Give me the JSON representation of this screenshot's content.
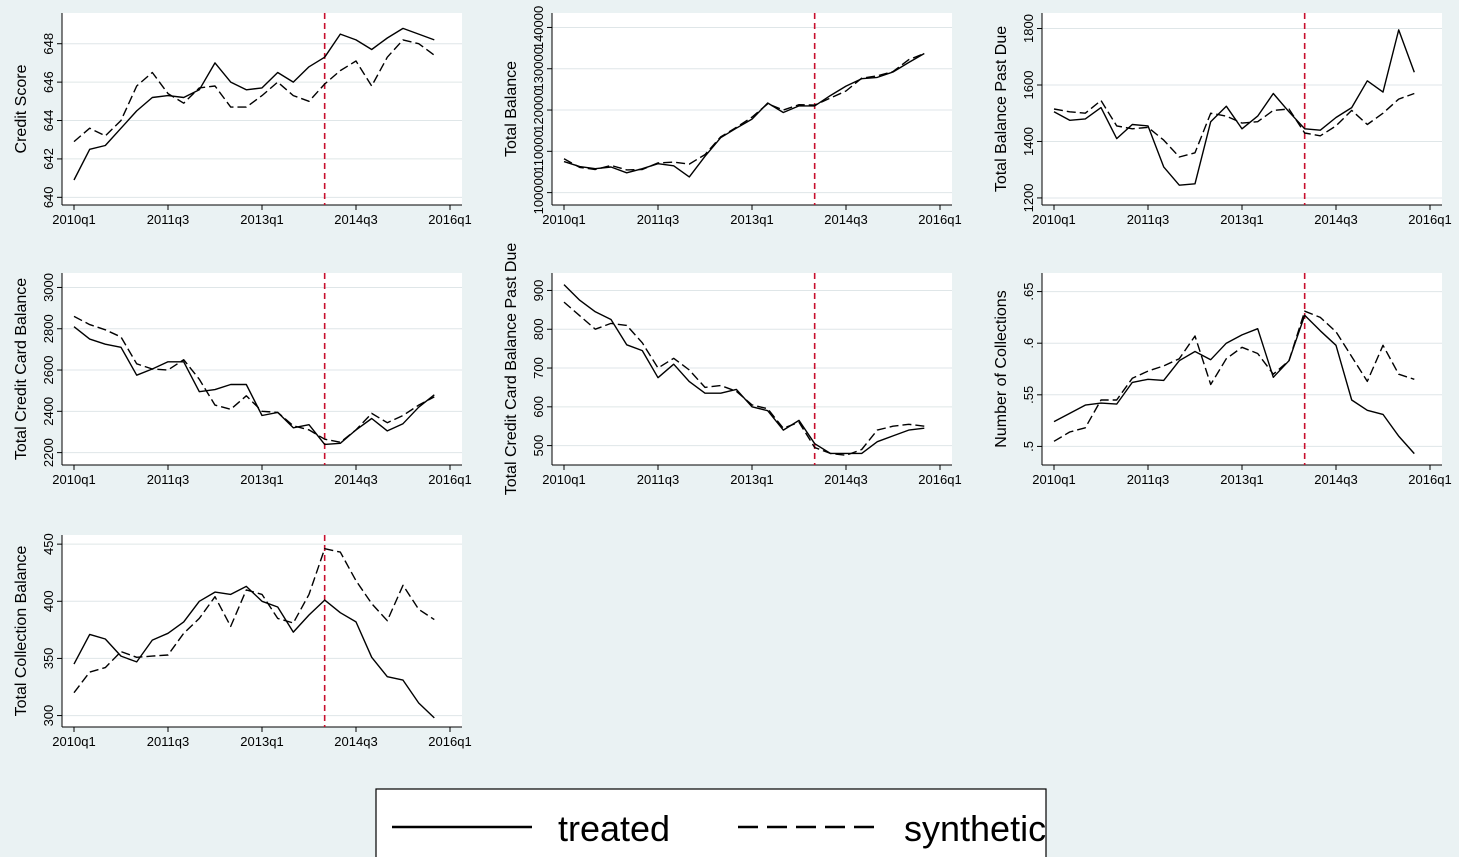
{
  "chart_data": [
    {
      "type": "line",
      "title": "",
      "xlabel": "",
      "ylabel": "Credit Score",
      "x_ticks": [
        "2010q1",
        "2011q3",
        "2013q1",
        "2014q3",
        "2016q1"
      ],
      "y_ticks": [
        "640",
        "642",
        "644",
        "646",
        "648"
      ],
      "ylim": [
        639.6,
        649.6
      ],
      "event_period": "2014q1",
      "series": [
        {
          "values": [
            640.9,
            642.5,
            642.7,
            643.6,
            644.5,
            645.2,
            645.3,
            645.2,
            645.6,
            647.0,
            646.0,
            645.6,
            645.7,
            646.5,
            646.0,
            646.8,
            647.3,
            648.5,
            648.2,
            647.7,
            648.3,
            648.8,
            648.5,
            648.2
          ]
        },
        {
          "values": [
            642.9,
            643.6,
            643.2,
            644.0,
            645.8,
            646.5,
            645.4,
            644.9,
            645.7,
            645.8,
            644.7,
            644.7,
            645.3,
            646.0,
            645.3,
            645.0,
            645.9,
            646.6,
            647.1,
            645.8,
            647.3,
            648.2,
            648.0,
            647.4
          ]
        }
      ]
    },
    {
      "type": "line",
      "title": "",
      "xlabel": "",
      "ylabel": "Total Balance",
      "x_ticks": [
        "2010q1",
        "2011q3",
        "2013q1",
        "2014q3",
        "2016q1"
      ],
      "y_ticks": [
        "100000",
        "110000",
        "120000",
        "130000",
        "140000"
      ],
      "ylim": [
        97000,
        143500
      ],
      "event_period": "2014q1",
      "series": [
        {
          "values": [
            107500,
            106300,
            105800,
            106200,
            104800,
            105800,
            107000,
            106500,
            103800,
            108800,
            113300,
            115600,
            117800,
            121700,
            119400,
            121000,
            121000,
            123500,
            125800,
            127600,
            127900,
            129200,
            131500,
            133700
          ]
        },
        {
          "values": [
            108200,
            106100,
            105600,
            106600,
            105500,
            105600,
            107200,
            107400,
            106900,
            109200,
            113500,
            115800,
            118300,
            121500,
            120000,
            121300,
            121200,
            122900,
            124600,
            127700,
            128300,
            129300,
            132200,
            133700
          ]
        }
      ]
    },
    {
      "type": "line",
      "title": "",
      "xlabel": "",
      "ylabel": "Total Balance Past Due",
      "x_ticks": [
        "2010q1",
        "2011q3",
        "2013q1",
        "2014q3",
        "2016q1"
      ],
      "y_ticks": [
        "1200",
        "1400",
        "1600",
        "1800"
      ],
      "ylim": [
        1175,
        1855
      ],
      "event_period": "2014q1",
      "series": [
        {
          "values": [
            1505,
            1475,
            1480,
            1520,
            1410,
            1460,
            1455,
            1310,
            1245,
            1250,
            1470,
            1525,
            1445,
            1490,
            1570,
            1505,
            1445,
            1440,
            1485,
            1520,
            1615,
            1575,
            1795,
            1645
          ]
        },
        {
          "values": [
            1515,
            1505,
            1500,
            1545,
            1455,
            1445,
            1450,
            1405,
            1345,
            1360,
            1500,
            1490,
            1465,
            1470,
            1510,
            1515,
            1430,
            1420,
            1455,
            1510,
            1460,
            1500,
            1550,
            1570
          ]
        }
      ]
    },
    {
      "type": "line",
      "title": "",
      "xlabel": "",
      "ylabel": "Total Credit Card Balance",
      "x_ticks": [
        "2010q1",
        "2011q3",
        "2013q1",
        "2014q3",
        "2016q1"
      ],
      "y_ticks": [
        "2200",
        "2400",
        "2600",
        "2800",
        "3000"
      ],
      "ylim": [
        2140,
        3070
      ],
      "event_period": "2014q1",
      "series": [
        {
          "values": [
            2810,
            2750,
            2725,
            2710,
            2575,
            2605,
            2640,
            2640,
            2495,
            2505,
            2530,
            2530,
            2380,
            2395,
            2320,
            2335,
            2240,
            2245,
            2310,
            2365,
            2305,
            2340,
            2420,
            2480
          ]
        },
        {
          "values": [
            2860,
            2820,
            2795,
            2760,
            2630,
            2605,
            2600,
            2650,
            2555,
            2430,
            2410,
            2475,
            2400,
            2395,
            2330,
            2310,
            2265,
            2250,
            2310,
            2390,
            2345,
            2380,
            2430,
            2470
          ]
        }
      ]
    },
    {
      "type": "line",
      "title": "",
      "xlabel": "",
      "ylabel": "Total Credit Card Balance Past Due",
      "x_ticks": [
        "2010q1",
        "2011q3",
        "2013q1",
        "2014q3",
        "2016q1"
      ],
      "y_ticks": [
        "500",
        "600",
        "700",
        "800",
        "900"
      ],
      "ylim": [
        450,
        945
      ],
      "event_period": "2014q1",
      "series": [
        {
          "values": [
            915,
            875,
            845,
            825,
            760,
            745,
            675,
            710,
            665,
            635,
            635,
            645,
            600,
            590,
            540,
            565,
            505,
            480,
            480,
            480,
            510,
            525,
            540,
            545
          ]
        },
        {
          "values": [
            870,
            835,
            800,
            815,
            810,
            765,
            700,
            725,
            695,
            650,
            655,
            640,
            605,
            595,
            545,
            560,
            495,
            480,
            475,
            490,
            540,
            550,
            555,
            550
          ]
        }
      ]
    },
    {
      "type": "line",
      "title": "",
      "xlabel": "",
      "ylabel": "Number of Collections",
      "x_ticks": [
        "2010q1",
        "2011q3",
        "2013q1",
        "2014q3",
        "2016q1"
      ],
      "y_ticks": [
        ".5",
        ".55",
        ".6",
        ".65"
      ],
      "ylim": [
        0.482,
        0.668
      ],
      "event_period": "2014q1",
      "series": [
        {
          "values": [
            0.524,
            0.532,
            0.54,
            0.542,
            0.541,
            0.562,
            0.565,
            0.564,
            0.583,
            0.592,
            0.584,
            0.6,
            0.608,
            0.614,
            0.567,
            0.583,
            0.627,
            0.612,
            0.598,
            0.545,
            0.535,
            0.531,
            0.51,
            0.493
          ]
        },
        {
          "values": [
            0.505,
            0.514,
            0.518,
            0.545,
            0.545,
            0.566,
            0.573,
            0.578,
            0.585,
            0.607,
            0.56,
            0.585,
            0.596,
            0.59,
            0.57,
            0.583,
            0.631,
            0.625,
            0.611,
            0.587,
            0.563,
            0.598,
            0.57,
            0.565
          ]
        }
      ]
    },
    {
      "type": "line",
      "title": "",
      "xlabel": "",
      "ylabel": "Total Collection Balance",
      "x_ticks": [
        "2010q1",
        "2011q3",
        "2013q1",
        "2014q3",
        "2016q1"
      ],
      "y_ticks": [
        "300",
        "350",
        "400",
        "450"
      ],
      "ylim": [
        290,
        458
      ],
      "event_period": "2014q1",
      "series": [
        {
          "values": [
            345,
            371,
            367,
            352,
            347,
            366,
            372,
            382,
            400,
            408,
            406,
            413,
            400,
            395,
            373,
            388,
            401,
            390,
            382,
            351,
            334,
            331,
            311,
            298
          ]
        },
        {
          "values": [
            320,
            338,
            342,
            356,
            351,
            352,
            353,
            372,
            385,
            404,
            378,
            410,
            406,
            385,
            381,
            406,
            446,
            443,
            418,
            398,
            383,
            414,
            393,
            384
          ]
        }
      ]
    }
  ],
  "legend": {
    "treated": "treated",
    "synthetic": "synthetic"
  },
  "colors": {
    "background": "#eaf2f3",
    "plot_background": "#ffffff",
    "event_line": "#c8102e",
    "series": "#000000"
  }
}
